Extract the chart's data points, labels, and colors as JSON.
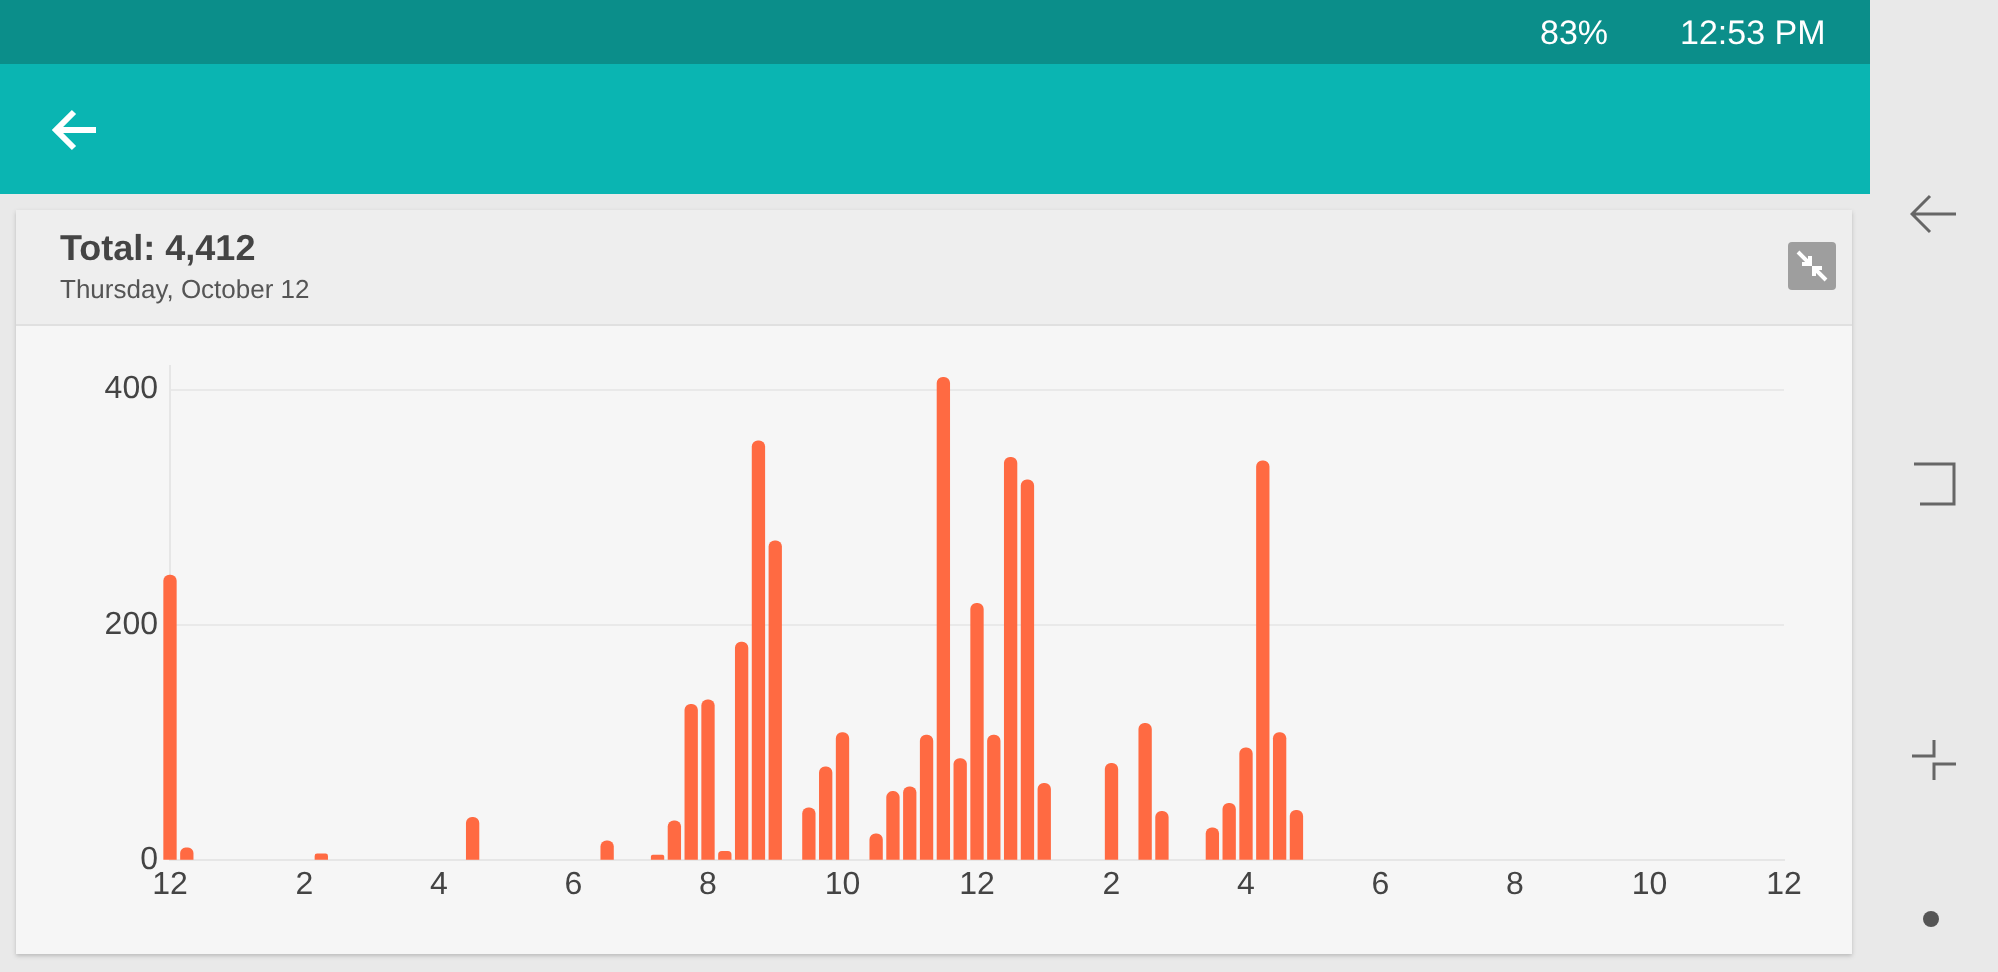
{
  "chart_data": {
    "type": "bar",
    "title": "Total: 4,412",
    "subtitle": "Thursday, October 12",
    "annotations": [
      "83%",
      "12:53 PM"
    ],
    "categories": [
      "12",
      null,
      null,
      null,
      null,
      null,
      null,
      null,
      "2",
      null,
      null,
      null,
      null,
      null,
      null,
      null,
      "4",
      null,
      null,
      null,
      null,
      null,
      null,
      null,
      "6",
      null,
      null,
      null,
      null,
      null,
      null,
      null,
      "8",
      null,
      null,
      null,
      null,
      null,
      null,
      null,
      "10",
      null,
      null,
      null,
      null,
      null,
      null,
      null,
      "12",
      null,
      null,
      null,
      null,
      null,
      null,
      null,
      "2",
      null,
      null,
      null,
      null,
      null,
      null,
      null,
      "4",
      null,
      null,
      null,
      null,
      null,
      null,
      null,
      "6",
      null,
      null,
      null,
      null,
      null,
      null,
      null,
      "8",
      null,
      null,
      null,
      null,
      null,
      null,
      null,
      "10",
      null,
      null,
      null,
      null,
      null,
      null,
      null,
      "12"
    ],
    "values": [
      242,
      10,
      null,
      null,
      null,
      null,
      null,
      null,
      null,
      5,
      null,
      null,
      null,
      null,
      null,
      null,
      null,
      null,
      36,
      null,
      null,
      null,
      null,
      null,
      null,
      null,
      16,
      null,
      null,
      4,
      33,
      132,
      136,
      7,
      185,
      356,
      271,
      null,
      44,
      79,
      108,
      null,
      22,
      58,
      62,
      106,
      410,
      86,
      218,
      106,
      342,
      323,
      65,
      null,
      null,
      null,
      82,
      null,
      116,
      41,
      null,
      null,
      27,
      48,
      95,
      339,
      108,
      42,
      null,
      null,
      null,
      null,
      null,
      null,
      null,
      null,
      null,
      null,
      null,
      null,
      null,
      null,
      null,
      null,
      null,
      null,
      null,
      null,
      null,
      null,
      null,
      null,
      null,
      null,
      null,
      null,
      null
    ],
    "color": "#ff6a42",
    "ylim": [
      0,
      420
    ],
    "yticks": [
      0,
      200,
      400
    ],
    "grid": "y"
  }
}
